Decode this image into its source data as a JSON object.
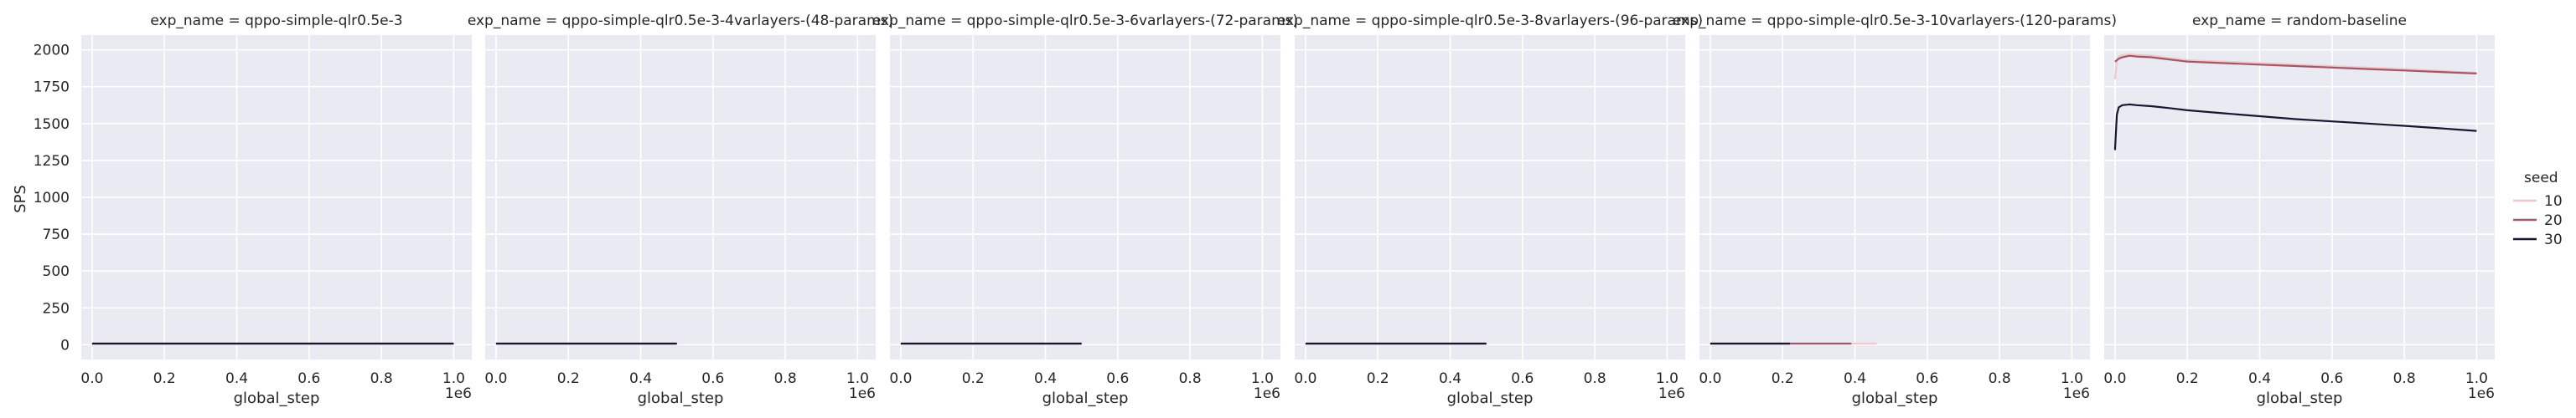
{
  "chart_data": {
    "type": "line",
    "facet_variable": "exp_name",
    "xlabel": "global_step",
    "ylabel": "SPS",
    "x_tick_labels": [
      "0.0",
      "0.2",
      "0.4",
      "0.6",
      "0.8",
      "1.0"
    ],
    "x_offset_label": "1e6",
    "y_tick_labels": [
      "0",
      "250",
      "500",
      "750",
      "1000",
      "1250",
      "1500",
      "1750",
      "2000"
    ],
    "xlim": [
      -30000,
      1050000
    ],
    "ylim": [
      -100,
      2100
    ],
    "grid": true,
    "legend": {
      "title": "seed",
      "placement": "right",
      "entries": [
        {
          "label": "10",
          "color": "#f3c8c8"
        },
        {
          "label": "20",
          "color": "#a2566a"
        },
        {
          "label": "30",
          "color": "#1a1530"
        }
      ]
    },
    "panels": [
      {
        "title": "exp_name = qppo-simple-qlr0.5e-3",
        "series": [
          {
            "seed": "10",
            "x": [
              0,
              1000000
            ],
            "y": [
              8,
              8
            ]
          },
          {
            "seed": "20",
            "x": [
              0,
              1000000
            ],
            "y": [
              8,
              8
            ]
          },
          {
            "seed": "30",
            "x": [
              0,
              1000000
            ],
            "y": [
              8,
              8
            ]
          }
        ]
      },
      {
        "title": "exp_name = qppo-simple-qlr0.5e-3-4varlayers-(48-params)",
        "series": [
          {
            "seed": "10",
            "x": [
              0,
              500000
            ],
            "y": [
              8,
              8
            ]
          },
          {
            "seed": "20",
            "x": [
              0,
              500000
            ],
            "y": [
              8,
              8
            ]
          },
          {
            "seed": "30",
            "x": [
              0,
              500000
            ],
            "y": [
              8,
              8
            ]
          }
        ]
      },
      {
        "title": "exp_name = qppo-simple-qlr0.5e-3-6varlayers-(72-params)",
        "series": [
          {
            "seed": "10",
            "x": [
              0,
              500000
            ],
            "y": [
              8,
              8
            ]
          },
          {
            "seed": "20",
            "x": [
              0,
              500000
            ],
            "y": [
              8,
              8
            ]
          },
          {
            "seed": "30",
            "x": [
              0,
              500000
            ],
            "y": [
              8,
              8
            ]
          }
        ]
      },
      {
        "title": "exp_name = qppo-simple-qlr0.5e-3-8varlayers-(96-params)",
        "series": [
          {
            "seed": "10",
            "x": [
              0,
              500000
            ],
            "y": [
              8,
              8
            ]
          },
          {
            "seed": "20",
            "x": [
              0,
              500000
            ],
            "y": [
              8,
              8
            ]
          },
          {
            "seed": "30",
            "x": [
              0,
              500000
            ],
            "y": [
              8,
              8
            ]
          }
        ]
      },
      {
        "title": "exp_name = qppo-simple-qlr0.5e-3-10varlayers-(120-params)",
        "series": [
          {
            "seed": "10",
            "x": [
              0,
              460000
            ],
            "y": [
              8,
              8
            ]
          },
          {
            "seed": "20",
            "x": [
              0,
              390000
            ],
            "y": [
              8,
              8
            ]
          },
          {
            "seed": "30",
            "x": [
              0,
              220000
            ],
            "y": [
              8,
              8
            ]
          }
        ]
      },
      {
        "title": "exp_name = random-baseline",
        "series": [
          {
            "seed": "10",
            "x": [
              0,
              5000,
              10000,
              20000,
              40000,
              60000,
              100000,
              150000,
              200000,
              300000,
              400000,
              500000,
              600000,
              700000,
              800000,
              900000,
              1000000
            ],
            "y": [
              1800,
              1925,
              1955,
              1965,
              1970,
              1966,
              1962,
              1945,
              1930,
              1920,
              1910,
              1900,
              1890,
              1880,
              1870,
              1858,
              1845
            ]
          },
          {
            "seed": "20",
            "x": [
              0,
              5000,
              10000,
              20000,
              40000,
              60000,
              100000,
              150000,
              200000,
              300000,
              400000,
              500000,
              600000,
              700000,
              800000,
              900000,
              1000000
            ],
            "y": [
              1920,
              1930,
              1940,
              1950,
              1960,
              1955,
              1950,
              1935,
              1920,
              1910,
              1900,
              1890,
              1880,
              1870,
              1860,
              1850,
              1840
            ]
          },
          {
            "seed": "30",
            "x": [
              0,
              5000,
              10000,
              20000,
              40000,
              60000,
              100000,
              150000,
              200000,
              300000,
              400000,
              500000,
              600000,
              700000,
              800000,
              900000,
              1000000
            ],
            "y": [
              1320,
              1560,
              1610,
              1625,
              1630,
              1625,
              1618,
              1605,
              1590,
              1570,
              1550,
              1530,
              1515,
              1500,
              1485,
              1468,
              1450
            ]
          }
        ]
      }
    ]
  }
}
